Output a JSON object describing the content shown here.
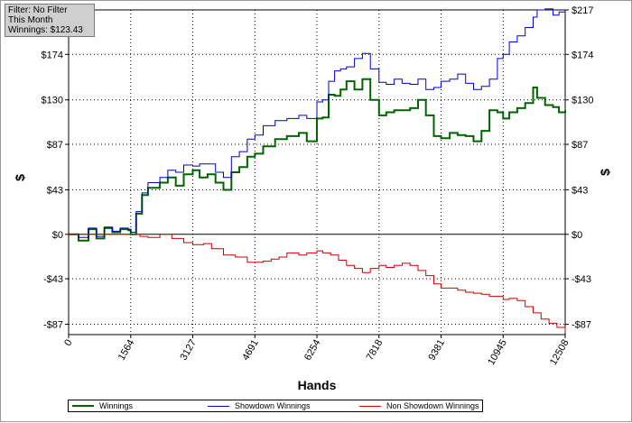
{
  "filter_box": {
    "line1": "Filter: No Filter",
    "line2": "This Month",
    "line3": "Winnings: $123.43"
  },
  "chart_data": {
    "type": "line",
    "xlabel": "Hands",
    "ylabel": "$",
    "xlim": [
      0,
      12508
    ],
    "ylim": [
      -97,
      217
    ],
    "x_ticks": [
      0,
      1564,
      3127,
      4691,
      6254,
      7818,
      9381,
      10945,
      12508
    ],
    "y_ticks": [
      {
        "value": -87,
        "label": "-$87"
      },
      {
        "value": -43,
        "label": "-$43"
      },
      {
        "value": 0,
        "label": "$0"
      },
      {
        "value": 43,
        "label": "$43"
      },
      {
        "value": 87,
        "label": "$87"
      },
      {
        "value": 130,
        "label": "$130"
      },
      {
        "value": 174,
        "label": "$174"
      },
      {
        "value": 217,
        "label": "$217"
      }
    ],
    "grid": true,
    "legend_position": "bottom",
    "series": [
      {
        "name": "Winnings",
        "color": "#006400",
        "points": [
          [
            0,
            0
          ],
          [
            250,
            -6
          ],
          [
            500,
            5
          ],
          [
            700,
            -4
          ],
          [
            900,
            6
          ],
          [
            1100,
            2
          ],
          [
            1300,
            5
          ],
          [
            1500,
            4
          ],
          [
            1564,
            0
          ],
          [
            1700,
            20
          ],
          [
            1850,
            38
          ],
          [
            2000,
            45
          ],
          [
            2300,
            50
          ],
          [
            2500,
            55
          ],
          [
            2700,
            47
          ],
          [
            2900,
            58
          ],
          [
            3127,
            62
          ],
          [
            3300,
            55
          ],
          [
            3500,
            58
          ],
          [
            3700,
            50
          ],
          [
            3900,
            43
          ],
          [
            4100,
            60
          ],
          [
            4300,
            65
          ],
          [
            4500,
            75
          ],
          [
            4691,
            78
          ],
          [
            4900,
            85
          ],
          [
            5200,
            92
          ],
          [
            5500,
            95
          ],
          [
            5800,
            98
          ],
          [
            6000,
            90
          ],
          [
            6254,
            112
          ],
          [
            6400,
            113
          ],
          [
            6550,
            135
          ],
          [
            6700,
            134
          ],
          [
            6850,
            140
          ],
          [
            7000,
            148
          ],
          [
            7200,
            140
          ],
          [
            7400,
            150
          ],
          [
            7600,
            130
          ],
          [
            7818,
            115
          ],
          [
            8000,
            118
          ],
          [
            8200,
            120
          ],
          [
            8400,
            120
          ],
          [
            8600,
            122
          ],
          [
            8800,
            130
          ],
          [
            9000,
            115
          ],
          [
            9200,
            95
          ],
          [
            9381,
            93
          ],
          [
            9600,
            98
          ],
          [
            9800,
            96
          ],
          [
            10000,
            95
          ],
          [
            10200,
            90
          ],
          [
            10400,
            100
          ],
          [
            10600,
            120
          ],
          [
            10800,
            118
          ],
          [
            10945,
            112
          ],
          [
            11100,
            118
          ],
          [
            11300,
            122
          ],
          [
            11500,
            127
          ],
          [
            11700,
            142
          ],
          [
            11800,
            132
          ],
          [
            12000,
            125
          ],
          [
            12200,
            123
          ],
          [
            12350,
            118
          ],
          [
            12508,
            120
          ]
        ]
      },
      {
        "name": "Showdown Winnings",
        "color": "#0000cc",
        "points": [
          [
            0,
            0
          ],
          [
            250,
            -3
          ],
          [
            500,
            6
          ],
          [
            700,
            -2
          ],
          [
            900,
            7
          ],
          [
            1100,
            3
          ],
          [
            1300,
            6
          ],
          [
            1500,
            5
          ],
          [
            1564,
            2
          ],
          [
            1700,
            22
          ],
          [
            1850,
            40
          ],
          [
            2000,
            50
          ],
          [
            2300,
            55
          ],
          [
            2500,
            62
          ],
          [
            2700,
            60
          ],
          [
            2900,
            67
          ],
          [
            3127,
            66
          ],
          [
            3300,
            68
          ],
          [
            3500,
            68
          ],
          [
            3700,
            60
          ],
          [
            3900,
            55
          ],
          [
            4100,
            75
          ],
          [
            4300,
            80
          ],
          [
            4500,
            92
          ],
          [
            4691,
            96
          ],
          [
            4900,
            105
          ],
          [
            5200,
            110
          ],
          [
            5500,
            112
          ],
          [
            5800,
            115
          ],
          [
            6000,
            112
          ],
          [
            6254,
            128
          ],
          [
            6400,
            130
          ],
          [
            6550,
            148
          ],
          [
            6700,
            158
          ],
          [
            6850,
            160
          ],
          [
            7000,
            162
          ],
          [
            7200,
            170
          ],
          [
            7400,
            175
          ],
          [
            7600,
            160
          ],
          [
            7818,
            147
          ],
          [
            8000,
            145
          ],
          [
            8200,
            150
          ],
          [
            8400,
            146
          ],
          [
            8600,
            145
          ],
          [
            8800,
            150
          ],
          [
            9000,
            140
          ],
          [
            9200,
            142
          ],
          [
            9381,
            148
          ],
          [
            9600,
            150
          ],
          [
            9800,
            155
          ],
          [
            10000,
            146
          ],
          [
            10200,
            140
          ],
          [
            10400,
            143
          ],
          [
            10600,
            150
          ],
          [
            10800,
            170
          ],
          [
            10945,
            174
          ],
          [
            11100,
            186
          ],
          [
            11300,
            192
          ],
          [
            11500,
            200
          ],
          [
            11700,
            210
          ],
          [
            11800,
            217
          ],
          [
            12000,
            218
          ],
          [
            12200,
            212
          ],
          [
            12350,
            215
          ],
          [
            12508,
            214
          ]
        ]
      },
      {
        "name": "Non Showdown Winnings",
        "color": "#cc0000",
        "points": [
          [
            0,
            0
          ],
          [
            500,
            0
          ],
          [
            1000,
            0
          ],
          [
            1564,
            0
          ],
          [
            1800,
            -2
          ],
          [
            2000,
            -3
          ],
          [
            2300,
            0
          ],
          [
            2600,
            -4
          ],
          [
            2900,
            -8
          ],
          [
            3127,
            -10
          ],
          [
            3400,
            -9
          ],
          [
            3600,
            -14
          ],
          [
            3900,
            -20
          ],
          [
            4200,
            -22
          ],
          [
            4500,
            -27
          ],
          [
            4691,
            -27
          ],
          [
            4900,
            -26
          ],
          [
            5100,
            -24
          ],
          [
            5300,
            -22
          ],
          [
            5500,
            -18
          ],
          [
            5800,
            -20
          ],
          [
            6000,
            -18
          ],
          [
            6254,
            -16
          ],
          [
            6400,
            -18
          ],
          [
            6600,
            -20
          ],
          [
            6800,
            -25
          ],
          [
            7000,
            -30
          ],
          [
            7200,
            -33
          ],
          [
            7400,
            -37
          ],
          [
            7600,
            -33
          ],
          [
            7818,
            -30
          ],
          [
            8000,
            -32
          ],
          [
            8200,
            -30
          ],
          [
            8400,
            -28
          ],
          [
            8600,
            -30
          ],
          [
            8800,
            -35
          ],
          [
            9000,
            -40
          ],
          [
            9200,
            -48
          ],
          [
            9381,
            -52
          ],
          [
            9600,
            -52
          ],
          [
            9800,
            -54
          ],
          [
            10000,
            -56
          ],
          [
            10200,
            -57
          ],
          [
            10400,
            -58
          ],
          [
            10600,
            -60
          ],
          [
            10800,
            -60
          ],
          [
            10945,
            -63
          ],
          [
            11100,
            -62
          ],
          [
            11300,
            -64
          ],
          [
            11500,
            -70
          ],
          [
            11700,
            -76
          ],
          [
            11900,
            -82
          ],
          [
            12100,
            -86
          ],
          [
            12300,
            -90
          ],
          [
            12508,
            -95
          ]
        ]
      }
    ]
  }
}
